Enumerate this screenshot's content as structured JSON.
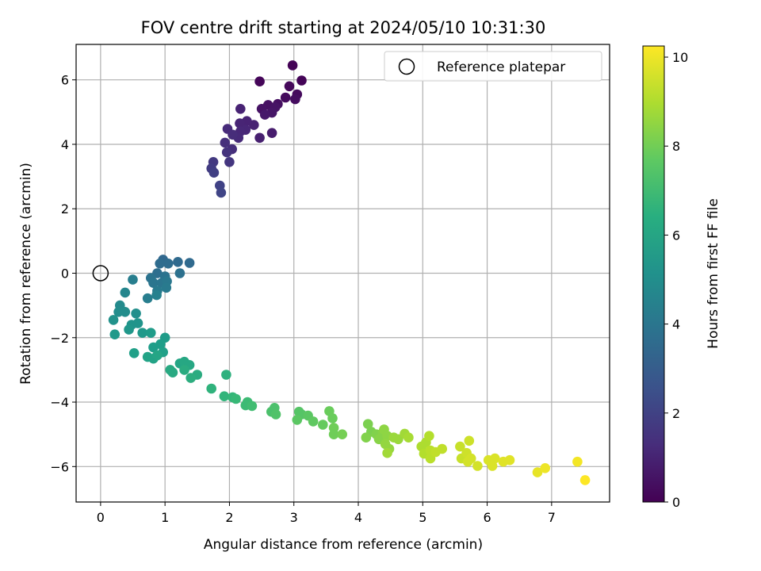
{
  "chart_data": {
    "type": "scatter",
    "title": "FOV centre drift starting at 2024/05/10 10:31:30",
    "xlabel": "Angular distance from reference (arcmin)",
    "ylabel": "Rotation from reference (arcmin)",
    "xlim": [
      -0.38,
      7.9
    ],
    "ylim": [
      -7.1,
      7.1
    ],
    "x_ticks": [
      0,
      1,
      2,
      3,
      4,
      5,
      6,
      7
    ],
    "y_ticks": [
      -6,
      -4,
      -2,
      0,
      2,
      4,
      6
    ],
    "grid": true,
    "legend": {
      "placement": "top-right",
      "entries": [
        "Reference platepar"
      ]
    },
    "reference_point": {
      "x": 0,
      "y": 0
    },
    "colorbar": {
      "label": "Hours from first FF file",
      "range": [
        0,
        10.25
      ],
      "ticks": [
        0,
        2,
        4,
        6,
        8,
        10
      ],
      "colormap": "viridis"
    },
    "points": [
      {
        "x": 2.98,
        "y": 6.45,
        "t": 0.05
      },
      {
        "x": 3.12,
        "y": 5.98,
        "t": 0.1
      },
      {
        "x": 2.47,
        "y": 5.95,
        "t": 0.15
      },
      {
        "x": 2.93,
        "y": 5.8,
        "t": 0.2
      },
      {
        "x": 3.05,
        "y": 5.55,
        "t": 0.25
      },
      {
        "x": 2.87,
        "y": 5.45,
        "t": 0.3
      },
      {
        "x": 3.02,
        "y": 5.4,
        "t": 0.35
      },
      {
        "x": 2.75,
        "y": 5.25,
        "t": 0.4
      },
      {
        "x": 2.6,
        "y": 5.22,
        "t": 0.45
      },
      {
        "x": 2.5,
        "y": 5.1,
        "t": 0.5
      },
      {
        "x": 2.71,
        "y": 5.15,
        "t": 0.55
      },
      {
        "x": 2.66,
        "y": 4.98,
        "t": 0.6
      },
      {
        "x": 2.55,
        "y": 4.92,
        "t": 0.7
      },
      {
        "x": 2.66,
        "y": 4.35,
        "t": 0.8
      },
      {
        "x": 2.47,
        "y": 4.2,
        "t": 0.9
      },
      {
        "x": 2.38,
        "y": 4.6,
        "t": 0.95
      },
      {
        "x": 2.27,
        "y": 4.72,
        "t": 1.0
      },
      {
        "x": 2.17,
        "y": 5.1,
        "t": 1.0
      },
      {
        "x": 2.16,
        "y": 4.65,
        "t": 1.05
      },
      {
        "x": 2.25,
        "y": 4.45,
        "t": 1.1
      },
      {
        "x": 2.17,
        "y": 4.4,
        "t": 1.15
      },
      {
        "x": 2.14,
        "y": 4.2,
        "t": 1.2
      },
      {
        "x": 1.97,
        "y": 4.48,
        "t": 1.25
      },
      {
        "x": 2.05,
        "y": 4.3,
        "t": 1.3
      },
      {
        "x": 2.04,
        "y": 3.85,
        "t": 1.35
      },
      {
        "x": 1.93,
        "y": 4.05,
        "t": 1.4
      },
      {
        "x": 1.96,
        "y": 3.75,
        "t": 1.5
      },
      {
        "x": 2.0,
        "y": 3.45,
        "t": 1.6
      },
      {
        "x": 1.75,
        "y": 3.45,
        "t": 1.7
      },
      {
        "x": 1.72,
        "y": 3.25,
        "t": 1.8
      },
      {
        "x": 1.76,
        "y": 3.12,
        "t": 1.9
      },
      {
        "x": 1.85,
        "y": 2.72,
        "t": 2.0
      },
      {
        "x": 1.87,
        "y": 2.5,
        "t": 2.1
      },
      {
        "x": 0.97,
        "y": 0.42,
        "t": 3.4
      },
      {
        "x": 1.38,
        "y": 0.32,
        "t": 3.5
      },
      {
        "x": 1.2,
        "y": 0.35,
        "t": 3.5
      },
      {
        "x": 0.92,
        "y": 0.3,
        "t": 3.6
      },
      {
        "x": 1.05,
        "y": 0.3,
        "t": 3.6
      },
      {
        "x": 0.88,
        "y": 0.0,
        "t": 3.7
      },
      {
        "x": 1.23,
        "y": 0.0,
        "t": 3.8
      },
      {
        "x": 0.78,
        "y": -0.15,
        "t": 3.9
      },
      {
        "x": 1.0,
        "y": -0.1,
        "t": 3.9
      },
      {
        "x": 0.82,
        "y": -0.3,
        "t": 4.0
      },
      {
        "x": 0.95,
        "y": -0.3,
        "t": 4.0
      },
      {
        "x": 1.03,
        "y": -0.25,
        "t": 4.1
      },
      {
        "x": 0.88,
        "y": -0.55,
        "t": 4.2
      },
      {
        "x": 1.02,
        "y": -0.45,
        "t": 4.2
      },
      {
        "x": 0.5,
        "y": -0.2,
        "t": 4.4
      },
      {
        "x": 0.73,
        "y": -0.78,
        "t": 4.4
      },
      {
        "x": 0.87,
        "y": -0.68,
        "t": 4.5
      },
      {
        "x": 0.38,
        "y": -0.6,
        "t": 4.7
      },
      {
        "x": 0.3,
        "y": -1.0,
        "t": 4.9
      },
      {
        "x": 0.28,
        "y": -1.2,
        "t": 5.0
      },
      {
        "x": 0.38,
        "y": -1.2,
        "t": 5.0
      },
      {
        "x": 0.55,
        "y": -1.25,
        "t": 5.1
      },
      {
        "x": 0.2,
        "y": -1.45,
        "t": 5.2
      },
      {
        "x": 0.48,
        "y": -1.6,
        "t": 5.3
      },
      {
        "x": 0.58,
        "y": -1.55,
        "t": 5.3
      },
      {
        "x": 0.44,
        "y": -1.75,
        "t": 5.4
      },
      {
        "x": 0.22,
        "y": -1.9,
        "t": 5.5
      },
      {
        "x": 0.65,
        "y": -1.85,
        "t": 5.5
      },
      {
        "x": 0.78,
        "y": -1.85,
        "t": 5.6
      },
      {
        "x": 1.0,
        "y": -2.0,
        "t": 5.6
      },
      {
        "x": 0.93,
        "y": -2.2,
        "t": 5.7
      },
      {
        "x": 0.82,
        "y": -2.3,
        "t": 5.7
      },
      {
        "x": 0.97,
        "y": -2.45,
        "t": 5.8
      },
      {
        "x": 0.52,
        "y": -2.48,
        "t": 5.8
      },
      {
        "x": 0.73,
        "y": -2.6,
        "t": 5.9
      },
      {
        "x": 0.82,
        "y": -2.65,
        "t": 5.9
      },
      {
        "x": 0.88,
        "y": -2.55,
        "t": 6.0
      },
      {
        "x": 1.23,
        "y": -2.8,
        "t": 6.0
      },
      {
        "x": 1.3,
        "y": -2.75,
        "t": 6.1
      },
      {
        "x": 1.38,
        "y": -2.85,
        "t": 6.1
      },
      {
        "x": 1.08,
        "y": -3.0,
        "t": 6.2
      },
      {
        "x": 1.12,
        "y": -3.08,
        "t": 6.2
      },
      {
        "x": 1.3,
        "y": -3.0,
        "t": 6.3
      },
      {
        "x": 1.5,
        "y": -3.15,
        "t": 6.3
      },
      {
        "x": 1.4,
        "y": -3.25,
        "t": 6.4
      },
      {
        "x": 1.95,
        "y": -3.15,
        "t": 6.5
      },
      {
        "x": 1.72,
        "y": -3.58,
        "t": 6.6
      },
      {
        "x": 1.92,
        "y": -3.82,
        "t": 6.7
      },
      {
        "x": 2.05,
        "y": -3.85,
        "t": 6.8
      },
      {
        "x": 2.1,
        "y": -3.9,
        "t": 6.9
      },
      {
        "x": 2.28,
        "y": -4.0,
        "t": 7.0
      },
      {
        "x": 2.25,
        "y": -4.1,
        "t": 7.0
      },
      {
        "x": 2.35,
        "y": -4.12,
        "t": 7.1
      },
      {
        "x": 2.7,
        "y": -4.18,
        "t": 7.3
      },
      {
        "x": 2.65,
        "y": -4.3,
        "t": 7.3
      },
      {
        "x": 2.72,
        "y": -4.38,
        "t": 7.4
      },
      {
        "x": 3.08,
        "y": -4.3,
        "t": 7.5
      },
      {
        "x": 3.12,
        "y": -4.38,
        "t": 7.5
      },
      {
        "x": 3.05,
        "y": -4.55,
        "t": 7.6
      },
      {
        "x": 3.22,
        "y": -4.42,
        "t": 7.6
      },
      {
        "x": 3.3,
        "y": -4.6,
        "t": 7.7
      },
      {
        "x": 3.45,
        "y": -4.7,
        "t": 7.8
      },
      {
        "x": 3.55,
        "y": -4.28,
        "t": 7.9
      },
      {
        "x": 3.6,
        "y": -4.5,
        "t": 7.9
      },
      {
        "x": 3.62,
        "y": -4.8,
        "t": 8.0
      },
      {
        "x": 3.62,
        "y": -5.0,
        "t": 8.0
      },
      {
        "x": 3.75,
        "y": -5.0,
        "t": 8.1
      },
      {
        "x": 4.15,
        "y": -4.68,
        "t": 8.2
      },
      {
        "x": 4.2,
        "y": -4.92,
        "t": 8.2
      },
      {
        "x": 4.12,
        "y": -5.1,
        "t": 8.3
      },
      {
        "x": 4.28,
        "y": -5.0,
        "t": 8.3
      },
      {
        "x": 4.32,
        "y": -5.15,
        "t": 8.4
      },
      {
        "x": 4.38,
        "y": -4.95,
        "t": 8.4
      },
      {
        "x": 4.4,
        "y": -4.85,
        "t": 8.5
      },
      {
        "x": 4.45,
        "y": -5.05,
        "t": 8.5
      },
      {
        "x": 4.42,
        "y": -5.3,
        "t": 8.6
      },
      {
        "x": 4.48,
        "y": -5.45,
        "t": 8.6
      },
      {
        "x": 4.55,
        "y": -5.1,
        "t": 8.7
      },
      {
        "x": 4.62,
        "y": -5.15,
        "t": 8.7
      },
      {
        "x": 4.45,
        "y": -5.58,
        "t": 8.8
      },
      {
        "x": 4.72,
        "y": -4.98,
        "t": 8.8
      },
      {
        "x": 4.78,
        "y": -5.1,
        "t": 8.9
      },
      {
        "x": 4.98,
        "y": -5.38,
        "t": 9.0
      },
      {
        "x": 5.05,
        "y": -5.25,
        "t": 9.0
      },
      {
        "x": 5.1,
        "y": -5.05,
        "t": 9.1
      },
      {
        "x": 5.02,
        "y": -5.6,
        "t": 9.1
      },
      {
        "x": 5.12,
        "y": -5.5,
        "t": 9.2
      },
      {
        "x": 5.12,
        "y": -5.75,
        "t": 9.2
      },
      {
        "x": 5.2,
        "y": -5.55,
        "t": 9.3
      },
      {
        "x": 5.3,
        "y": -5.45,
        "t": 9.3
      },
      {
        "x": 5.58,
        "y": -5.38,
        "t": 9.4
      },
      {
        "x": 5.6,
        "y": -5.75,
        "t": 9.4
      },
      {
        "x": 5.68,
        "y": -5.58,
        "t": 9.5
      },
      {
        "x": 5.72,
        "y": -5.2,
        "t": 9.5
      },
      {
        "x": 5.75,
        "y": -5.75,
        "t": 9.6
      },
      {
        "x": 5.85,
        "y": -5.98,
        "t": 9.6
      },
      {
        "x": 5.7,
        "y": -5.85,
        "t": 9.6
      },
      {
        "x": 6.02,
        "y": -5.8,
        "t": 9.7
      },
      {
        "x": 6.08,
        "y": -5.98,
        "t": 9.7
      },
      {
        "x": 6.12,
        "y": -5.75,
        "t": 9.7
      },
      {
        "x": 6.25,
        "y": -5.85,
        "t": 9.8
      },
      {
        "x": 6.35,
        "y": -5.8,
        "t": 9.8
      },
      {
        "x": 6.78,
        "y": -6.18,
        "t": 9.9
      },
      {
        "x": 6.9,
        "y": -6.05,
        "t": 10.0
      },
      {
        "x": 7.4,
        "y": -5.85,
        "t": 10.1
      },
      {
        "x": 7.52,
        "y": -6.42,
        "t": 10.25
      }
    ]
  }
}
